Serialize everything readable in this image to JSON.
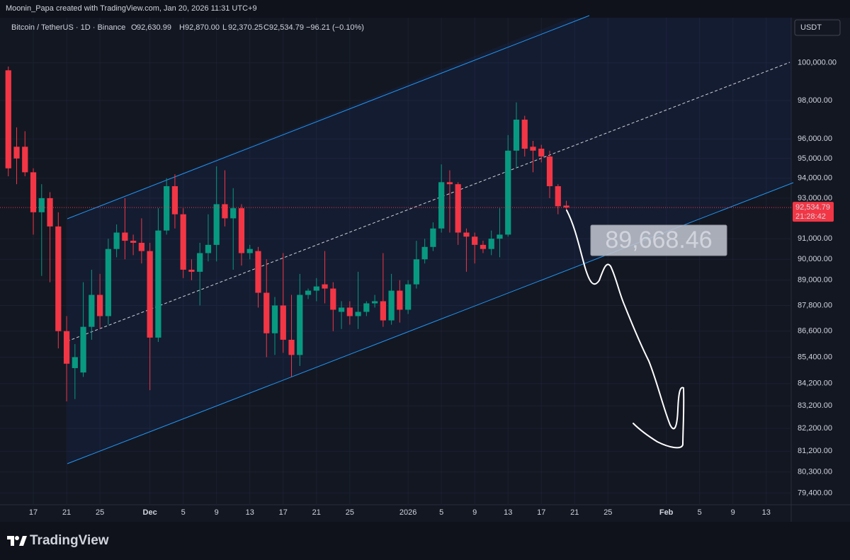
{
  "header": "Moonin_Papa created with TradingView.com, Jan 20, 2026 11:31 UTC+9",
  "chart_data": {
    "type": "candlestick",
    "symbol": "Bitcoin / TetherUS · 1D · Binance",
    "ohlc_legend": [
      {
        "key": "O",
        "value": "92,630.99"
      },
      {
        "key": "H",
        "value": "92,870.00"
      },
      {
        "key": "L",
        "value": "92,370.25"
      },
      {
        "key": "C",
        "value": "92,534.79"
      }
    ],
    "change": "−96.21 (−0.10%)",
    "currency": "USDT",
    "annotation": "89,668.46",
    "price_marker": {
      "label": "92,534.79",
      "countdown": "21:28:42"
    },
    "up_color": "#089981",
    "down_color": "#f23645",
    "log": true,
    "grid": true,
    "x": [
      "2025-11-14",
      "2025-11-15",
      "2025-11-16",
      "2025-11-17",
      "2025-11-18",
      "2025-11-19",
      "2025-11-20",
      "2025-11-21",
      "2025-11-22",
      "2025-11-23",
      "2025-11-24",
      "2025-11-25",
      "2025-11-26",
      "2025-11-27",
      "2025-11-28",
      "2025-11-29",
      "2025-11-30",
      "2025-12-01",
      "2025-12-02",
      "2025-12-03",
      "2025-12-04",
      "2025-12-05",
      "2025-12-06",
      "2025-12-07",
      "2025-12-08",
      "2025-12-09",
      "2025-12-10",
      "2025-12-11",
      "2025-12-12",
      "2025-12-13",
      "2025-12-14",
      "2025-12-15",
      "2025-12-16",
      "2025-12-17",
      "2025-12-18",
      "2025-12-19",
      "2025-12-20",
      "2025-12-21",
      "2025-12-22",
      "2025-12-23",
      "2025-12-24",
      "2025-12-25",
      "2025-12-26",
      "2025-12-27",
      "2025-12-28",
      "2025-12-29",
      "2025-12-30",
      "2025-12-31",
      "2026-01-01",
      "2026-01-02",
      "2026-01-03",
      "2026-01-04",
      "2026-01-05",
      "2026-01-06",
      "2026-01-07",
      "2026-01-08",
      "2026-01-09",
      "2026-01-10",
      "2026-01-11",
      "2026-01-12",
      "2026-01-13",
      "2026-01-14",
      "2026-01-15",
      "2026-01-16",
      "2026-01-17",
      "2026-01-18",
      "2026-01-19",
      "2026-01-20"
    ],
    "open": [
      99600,
      95600,
      95600,
      94300,
      92300,
      93000,
      91600,
      86600,
      84900,
      84700,
      86800,
      88300,
      87300,
      90500,
      91300,
      90900,
      90800,
      90400,
      86300,
      91400,
      93600,
      92200,
      89500,
      89400,
      90300,
      90700,
      92700,
      92000,
      92500,
      90300,
      90400,
      88400,
      86500,
      87800,
      86200,
      85500,
      88300,
      88500,
      88800,
      88600,
      87500,
      87700,
      87300,
      87500,
      87900,
      88000,
      87100,
      88500,
      87600,
      88800,
      90000,
      90600,
      91500,
      93800,
      93700,
      91300,
      91100,
      90700,
      90500,
      91000,
      91200,
      95400,
      97000,
      95600,
      95500,
      95100,
      93600,
      92630.99
    ],
    "high": [
      99800,
      96600,
      96400,
      94500,
      93700,
      93300,
      92300,
      87300,
      86000,
      88900,
      89500,
      89300,
      91000,
      91700,
      93000,
      91200,
      92000,
      90800,
      92500,
      94000,
      94200,
      92500,
      90000,
      90800,
      92200,
      94600,
      94400,
      93500,
      92700,
      90700,
      90600,
      90000,
      88200,
      90300,
      88300,
      89300,
      88600,
      89100,
      90400,
      88900,
      88000,
      88000,
      89400,
      88000,
      88300,
      90300,
      89300,
      89000,
      89000,
      90900,
      91000,
      91800,
      94700,
      94400,
      93800,
      91500,
      91300,
      90900,
      91400,
      92500,
      96200,
      97900,
      97200,
      95900,
      95700,
      95400,
      93700,
      92870
    ],
    "low": [
      94100,
      93700,
      94100,
      91200,
      89200,
      88900,
      85800,
      83400,
      83500,
      84500,
      86200,
      86700,
      86900,
      90100,
      90000,
      90200,
      89800,
      83900,
      86100,
      91200,
      91500,
      89100,
      89000,
      87800,
      89900,
      89900,
      91600,
      89500,
      89700,
      90000,
      87700,
      85400,
      85500,
      85600,
      84500,
      85000,
      88100,
      88000,
      87900,
      86600,
      86700,
      86900,
      86700,
      87300,
      87700,
      86800,
      86900,
      87000,
      87400,
      88600,
      89800,
      90400,
      91300,
      91300,
      90700,
      89400,
      89800,
      90300,
      90200,
      90100,
      91100,
      94500,
      95100,
      94300,
      94800,
      93000,
      92200,
      92370.25
    ],
    "close": [
      94500,
      95000,
      94300,
      92300,
      93000,
      91600,
      86600,
      85100,
      85400,
      86800,
      88300,
      87300,
      90500,
      91300,
      90900,
      90800,
      90400,
      86300,
      91400,
      93600,
      92200,
      89500,
      89400,
      90300,
      90700,
      92700,
      92000,
      92500,
      90300,
      90500,
      88400,
      86500,
      87800,
      86200,
      85500,
      88300,
      88500,
      88700,
      88600,
      87600,
      87700,
      87300,
      87500,
      87900,
      88000,
      87100,
      88500,
      87600,
      88800,
      90000,
      90600,
      91500,
      93800,
      93700,
      91300,
      91100,
      90700,
      90500,
      91000,
      91200,
      95400,
      97000,
      95500,
      95400,
      95100,
      93600,
      92600,
      92534.79
    ],
    "xlim": [
      "2025-11-13",
      "2026-02-16"
    ],
    "xticks": [
      {
        "value": "2025-11-17",
        "label": "17"
      },
      {
        "value": "2025-11-21",
        "label": "21"
      },
      {
        "value": "2025-11-25",
        "label": "25"
      },
      {
        "value": "2025-12-01",
        "label": "Dec"
      },
      {
        "value": "2025-12-05",
        "label": "5"
      },
      {
        "value": "2025-12-09",
        "label": "9"
      },
      {
        "value": "2025-12-13",
        "label": "13"
      },
      {
        "value": "2025-12-17",
        "label": "17"
      },
      {
        "value": "2025-12-21",
        "label": "21"
      },
      {
        "value": "2025-12-25",
        "label": "25"
      },
      {
        "value": "2026-01-01",
        "label": "2026"
      },
      {
        "value": "2026-01-05",
        "label": "5"
      },
      {
        "value": "2026-01-09",
        "label": "9"
      },
      {
        "value": "2026-01-13",
        "label": "13"
      },
      {
        "value": "2026-01-17",
        "label": "17"
      },
      {
        "value": "2026-01-21",
        "label": "21"
      },
      {
        "value": "2026-01-25",
        "label": "25"
      },
      {
        "value": "2026-02-01",
        "label": "Feb"
      },
      {
        "value": "2026-02-05",
        "label": "5"
      },
      {
        "value": "2026-02-09",
        "label": "9"
      },
      {
        "value": "2026-02-13",
        "label": "13"
      }
    ],
    "ylim": [
      78900,
      102450
    ],
    "yticks": [
      {
        "value": 100000,
        "label": "100,000.00"
      },
      {
        "value": 98000,
        "label": "98,000.00"
      },
      {
        "value": 96000,
        "label": "96,000.00"
      },
      {
        "value": 95000,
        "label": "95,000.00"
      },
      {
        "value": 94000,
        "label": "94,000.00"
      },
      {
        "value": 93000,
        "label": "93,000.00"
      },
      {
        "value": 91000,
        "label": "91,000.00"
      },
      {
        "value": 90000,
        "label": "90,000.00"
      },
      {
        "value": 89000,
        "label": "89,000.00"
      },
      {
        "value": 87800,
        "label": "87,800.00"
      },
      {
        "value": 86600,
        "label": "86,600.00"
      },
      {
        "value": 85400,
        "label": "85,400.00"
      },
      {
        "value": 84200,
        "label": "84,200.00"
      },
      {
        "value": 83200,
        "label": "83,200.00"
      },
      {
        "value": 82200,
        "label": "82,200.00"
      },
      {
        "value": 81200,
        "label": "81,200.00"
      },
      {
        "value": 80300,
        "label": "80,300.00"
      },
      {
        "value": 79400,
        "label": "79,400.00"
      }
    ]
  },
  "footer": {
    "logo": "TradingView"
  }
}
